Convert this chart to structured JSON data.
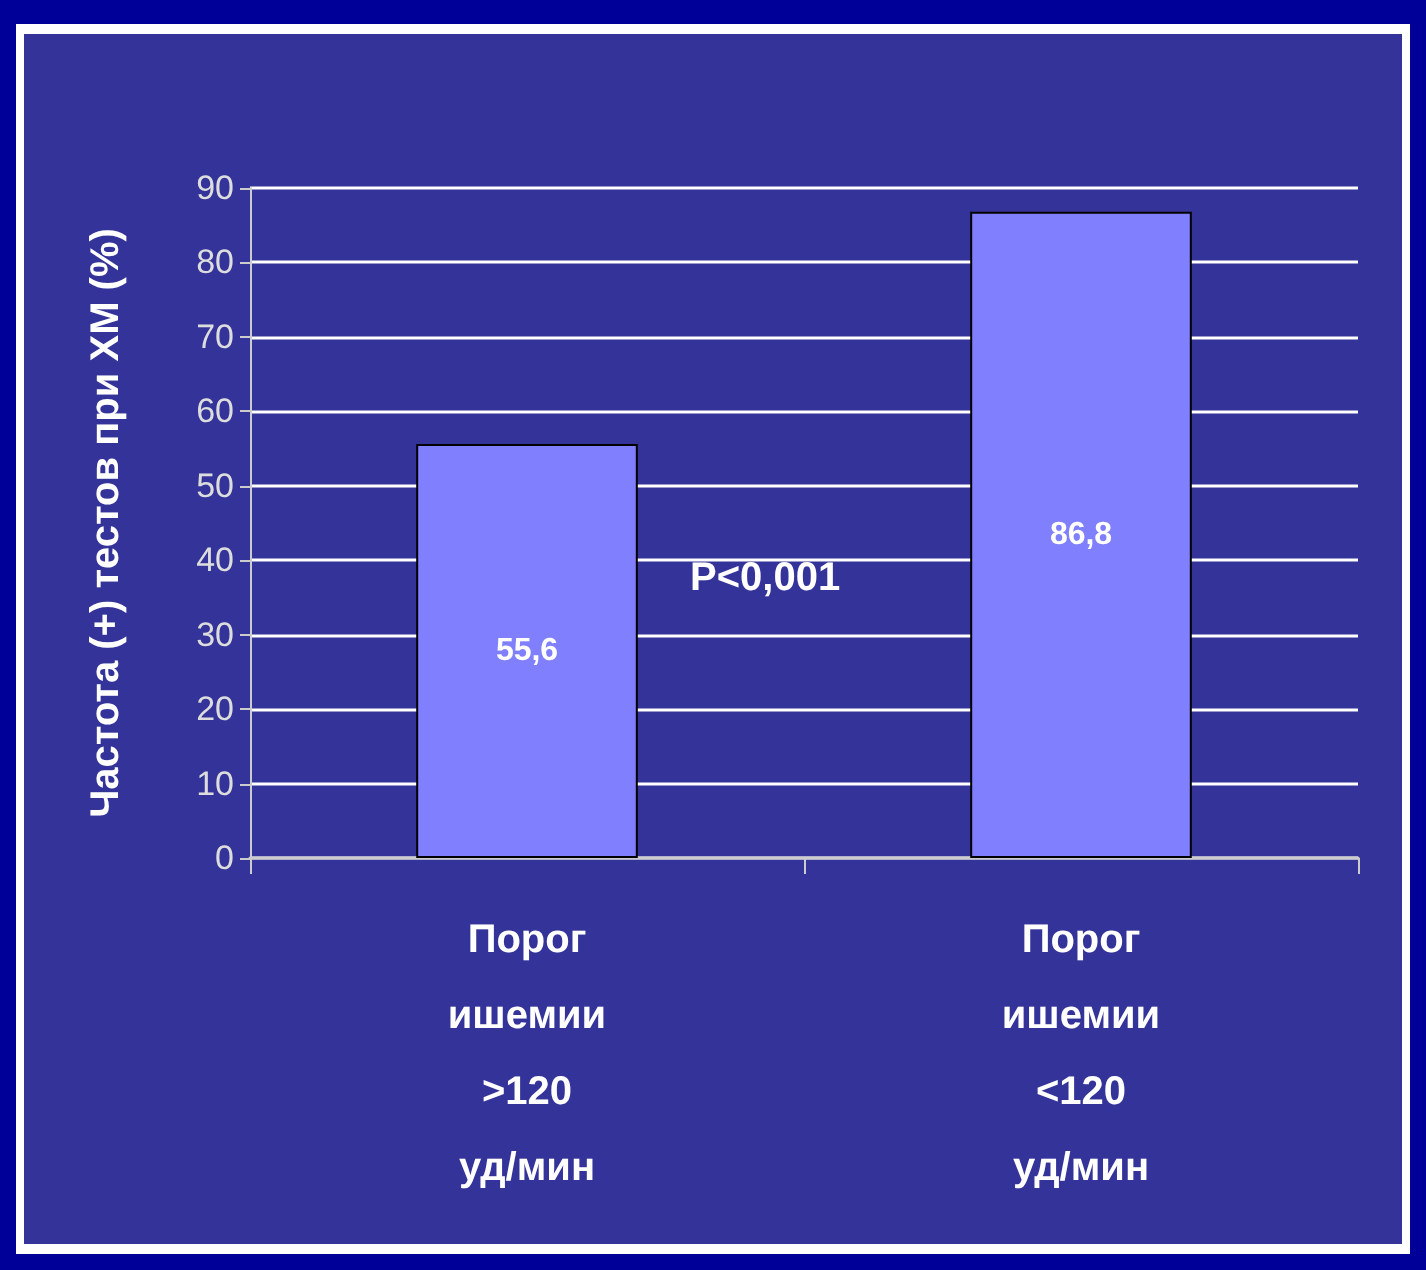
{
  "chart_data": {
    "type": "bar",
    "ylabel": "Частота (+) тестов при ХМ (%)",
    "categories": [
      "Порог\nишемии\n>120\nуд/мин",
      "Порог\nишемии\n<120\nуд/мин"
    ],
    "values": [
      55.6,
      86.8
    ],
    "value_labels": [
      "55,6",
      "86,8"
    ],
    "color": "#8080ff",
    "ylim": [
      0,
      90
    ],
    "yticks": [
      0,
      10,
      20,
      30,
      40,
      50,
      60,
      70,
      80,
      90
    ],
    "grid": "y",
    "annotations": [
      "P<0,001"
    ]
  }
}
